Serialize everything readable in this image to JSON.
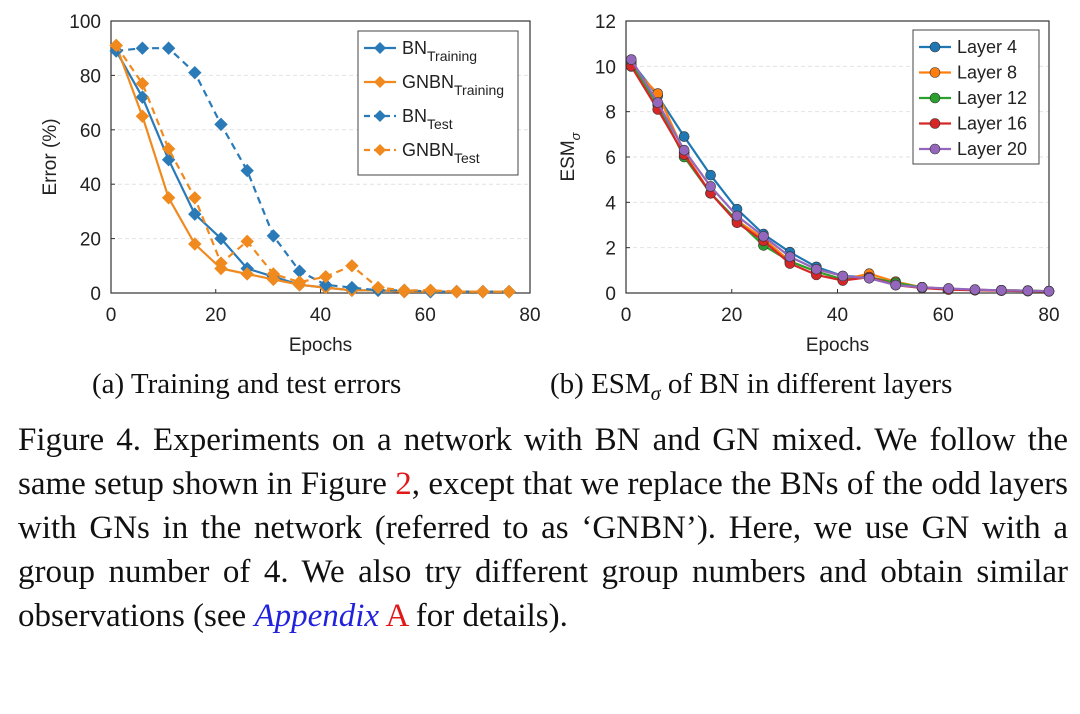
{
  "chart_data": [
    {
      "type": "line",
      "xlabel": "Epochs",
      "ylabel": "Error (%)",
      "xlim": [
        0,
        80
      ],
      "ylim": [
        0,
        100
      ],
      "xticks": [
        0,
        20,
        40,
        60,
        80
      ],
      "yticks": [
        0,
        20,
        40,
        60,
        80,
        100
      ],
      "grid": true,
      "legend_position": "top-right",
      "caption": "(a) Training and test errors",
      "series": [
        {
          "name": "BN",
          "name_sub": "Training",
          "color": "#2a7ab8",
          "dash": false,
          "marker": "diamond",
          "x": [
            1,
            6,
            11,
            16,
            21,
            26,
            31,
            36,
            41,
            46,
            51,
            56,
            61,
            66,
            71,
            76
          ],
          "y": [
            89,
            72,
            49,
            29,
            20,
            9,
            6,
            3,
            2,
            1,
            1,
            0.5,
            0.5,
            0.5,
            0.5,
            0.5
          ]
        },
        {
          "name": "GNBN",
          "name_sub": "Training",
          "color": "#f08a1e",
          "dash": false,
          "marker": "diamond",
          "x": [
            1,
            6,
            11,
            16,
            21,
            26,
            31,
            36,
            41,
            46,
            51,
            56,
            61,
            66,
            71,
            76
          ],
          "y": [
            91,
            65,
            35,
            18,
            9,
            7,
            5,
            3,
            2,
            1,
            1,
            0.5,
            0.5,
            0.5,
            0.5,
            0.5
          ]
        },
        {
          "name": "BN",
          "name_sub": "Test",
          "color": "#2a7ab8",
          "dash": true,
          "marker": "diamond",
          "x": [
            1,
            6,
            11,
            16,
            21,
            26,
            31,
            36,
            41,
            46,
            51,
            56,
            61,
            66,
            71,
            76
          ],
          "y": [
            89,
            90,
            90,
            81,
            62,
            45,
            21,
            8,
            3,
            2,
            1,
            1,
            0.5,
            0.5,
            0.5,
            0.5
          ]
        },
        {
          "name": "GNBN",
          "name_sub": "Test",
          "color": "#f08a1e",
          "dash": true,
          "marker": "diamond",
          "x": [
            1,
            6,
            11,
            16,
            21,
            26,
            31,
            36,
            41,
            46,
            51,
            56,
            61,
            66,
            71,
            76
          ],
          "y": [
            91,
            77,
            53,
            35,
            11,
            19,
            7,
            4,
            6,
            10,
            2,
            1,
            1,
            0.5,
            0.5,
            0.5
          ]
        }
      ]
    },
    {
      "type": "line",
      "xlabel": "Epochs",
      "ylabel": "ESM",
      "ylabel_sub": "σ",
      "xlim": [
        0,
        80
      ],
      "ylim": [
        0,
        12
      ],
      "xticks": [
        0,
        20,
        40,
        60,
        80
      ],
      "yticks": [
        0,
        2,
        4,
        6,
        8,
        10,
        12
      ],
      "grid": true,
      "legend_position": "top-right",
      "caption": "(b) ESM",
      "caption_sub": "σ",
      "caption_tail": " of BN in different layers",
      "series": [
        {
          "name": "Layer 4",
          "color": "#1f77b4",
          "marker": "circle",
          "x": [
            1,
            6,
            11,
            16,
            21,
            26,
            31,
            36,
            41,
            46,
            51,
            56,
            61,
            66,
            71,
            76,
            80
          ],
          "y": [
            10.2,
            8.7,
            6.9,
            5.2,
            3.7,
            2.6,
            1.8,
            1.15,
            0.75,
            0.7,
            0.4,
            0.25,
            0.18,
            0.14,
            0.12,
            0.1,
            0.08
          ]
        },
        {
          "name": "Layer 8",
          "color": "#ff7f0e",
          "marker": "circle",
          "x": [
            1,
            6,
            11,
            16,
            21,
            26,
            31,
            36,
            41,
            46,
            51,
            56,
            61,
            66,
            71,
            76,
            80
          ],
          "y": [
            10.0,
            8.8,
            6.2,
            4.4,
            3.2,
            2.4,
            1.4,
            0.95,
            0.6,
            0.85,
            0.5,
            0.25,
            0.18,
            0.14,
            0.12,
            0.1,
            0.08
          ]
        },
        {
          "name": "Layer 12",
          "color": "#2ca02c",
          "marker": "circle",
          "x": [
            1,
            6,
            11,
            16,
            21,
            26,
            31,
            36,
            41,
            46,
            51,
            56,
            61,
            66,
            71,
            76,
            80
          ],
          "y": [
            10.1,
            8.3,
            6.0,
            4.4,
            3.2,
            2.1,
            1.4,
            0.95,
            0.6,
            0.7,
            0.45,
            0.25,
            0.18,
            0.14,
            0.12,
            0.1,
            0.08
          ]
        },
        {
          "name": "Layer 16",
          "color": "#d62728",
          "marker": "circle",
          "x": [
            1,
            6,
            11,
            16,
            21,
            26,
            31,
            36,
            41,
            46,
            51,
            56,
            61,
            66,
            71,
            76,
            80
          ],
          "y": [
            10.0,
            8.1,
            6.1,
            4.4,
            3.1,
            2.3,
            1.3,
            0.8,
            0.55,
            0.7,
            0.35,
            0.22,
            0.15,
            0.12,
            0.1,
            0.08,
            0.07
          ]
        },
        {
          "name": "Layer 20",
          "color": "#9467bd",
          "marker": "circle",
          "x": [
            1,
            6,
            11,
            16,
            21,
            26,
            31,
            36,
            41,
            46,
            51,
            56,
            61,
            66,
            71,
            76,
            80
          ],
          "y": [
            10.3,
            8.4,
            6.3,
            4.7,
            3.4,
            2.5,
            1.6,
            1.05,
            0.75,
            0.65,
            0.35,
            0.25,
            0.2,
            0.15,
            0.12,
            0.1,
            0.08
          ]
        }
      ]
    }
  ],
  "caption": {
    "text_before": "Figure 4. Experiments on a network with BN and GN mixed. We follow the same setup shown in Figure ",
    "figure_ref": "2",
    "text_middle": ", except that we replace the BNs of the odd layers with GNs in the network (referred to as ‘GNBN’). Here, we use GN with a group number of 4.  We also try different group numbers and obtain similar observations (see ",
    "appendix_label": "Appendix",
    "appendix_ref": "A",
    "text_after": " for details)."
  }
}
